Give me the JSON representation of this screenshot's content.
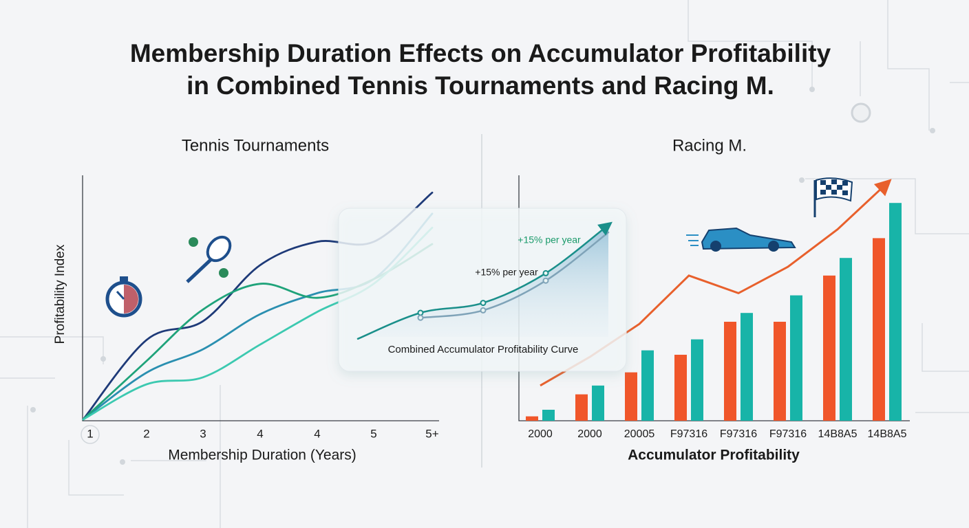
{
  "title": [
    "Membership Duration Effects on Accumulator Profitability",
    "in Combined Tennis Tournaments and Racing M."
  ],
  "chart_data": [
    {
      "type": "line",
      "title": "Tennis Tournaments",
      "x_label": "Membership Duration (Years)",
      "y_label": "Profitability Index",
      "categories": [
        "1",
        "2",
        "3",
        "4",
        "4",
        "5",
        "5+"
      ],
      "ylim": [
        0,
        100
      ],
      "series": [
        {
          "color": "#1e3a78",
          "values": [
            0,
            34,
            42,
            66,
            76,
            76,
            97
          ]
        },
        {
          "color": "#2a8fb0",
          "values": [
            0,
            20,
            30,
            45,
            54,
            60,
            88
          ]
        },
        {
          "color": "#1fa37a",
          "values": [
            0,
            25,
            47,
            58,
            52,
            60,
            75
          ]
        },
        {
          "color": "#3cc9b0",
          "values": [
            0,
            15,
            18,
            32,
            46,
            58,
            82
          ]
        }
      ]
    },
    {
      "type": "bar",
      "title": "Racing M.",
      "x_label": "Accumulator Profitability",
      "categories": [
        "2000",
        "2000",
        "20005",
        "F97316",
        "F97316",
        "F97316",
        "14B8A5",
        "14B8A5"
      ],
      "ylim": [
        0,
        110
      ],
      "series": [
        {
          "color": "#f0562a",
          "values": [
            2,
            12,
            22,
            30,
            45,
            45,
            66,
            83
          ]
        },
        {
          "color": "#18b4a8",
          "values": [
            5,
            16,
            32,
            37,
            49,
            57,
            74,
            99
          ]
        },
        {
          "type": "line",
          "color": "#e8602c",
          "values": [
            16,
            29,
            44,
            66,
            58,
            70,
            87,
            108
          ]
        }
      ]
    },
    {
      "type": "line",
      "title": "Combined Accumulator Profitability Curve",
      "categories": [
        null,
        null,
        null,
        null,
        null
      ],
      "ylim": [
        0,
        100
      ],
      "annotations": [
        "+15% per year",
        "+15% per year"
      ],
      "series": [
        {
          "color": "#1a8f8a",
          "values": [
            4,
            25,
            33,
            57,
            96
          ]
        },
        {
          "color": "#7fa3b8",
          "values": [
            null,
            21,
            27,
            51,
            90
          ]
        }
      ]
    }
  ]
}
